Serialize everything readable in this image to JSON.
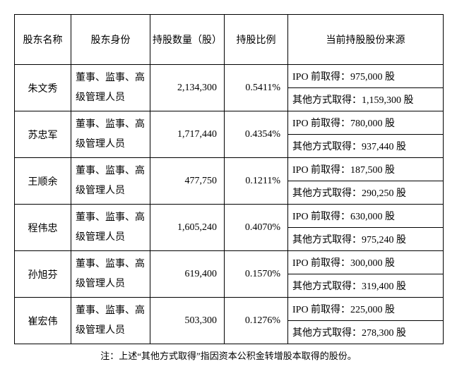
{
  "table": {
    "columns": [
      "股东名称",
      "股东身份",
      "持股数量（股）",
      "持股比例",
      "当前持股股份来源"
    ],
    "rows": [
      {
        "name": "朱文秀",
        "role": "董事、监事、高级管理人员",
        "qty": "2,134,300",
        "pct": "0.5411%",
        "src1": "IPO 前取得：975,000 股",
        "src2": "其他方式取得：1,159,300 股"
      },
      {
        "name": "苏忠军",
        "role": "董事、监事、高级管理人员",
        "qty": "1,717,440",
        "pct": "0.4354%",
        "src1": "IPO 前取得：780,000 股",
        "src2": "其他方式取得：937,440 股"
      },
      {
        "name": "王顺余",
        "role": "董事、监事、高级管理人员",
        "qty": "477,750",
        "pct": "0.1211%",
        "src1": "IPO 前取得：187,500 股",
        "src2": "其他方式取得：290,250 股"
      },
      {
        "name": "程伟忠",
        "role": "董事、监事、高级管理人员",
        "qty": "1,605,240",
        "pct": "0.4070%",
        "src1": "IPO 前取得：630,000 股",
        "src2": "其他方式取得：975,240 股"
      },
      {
        "name": "孙旭芬",
        "role": "董事、监事、高级管理人员",
        "qty": "619,400",
        "pct": "0.1570%",
        "src1": "IPO 前取得：300,000 股",
        "src2": "其他方式取得：319,400 股"
      },
      {
        "name": "崔宏伟",
        "role": "董事、监事、高级管理人员",
        "qty": "503,300",
        "pct": "0.1276%",
        "src1": "IPO 前取得：225,000 股",
        "src2": "其他方式取得：278,300 股"
      }
    ]
  },
  "footnote": "注：上述“其他方式取得”指因资本公积金转增股本取得的股份。"
}
